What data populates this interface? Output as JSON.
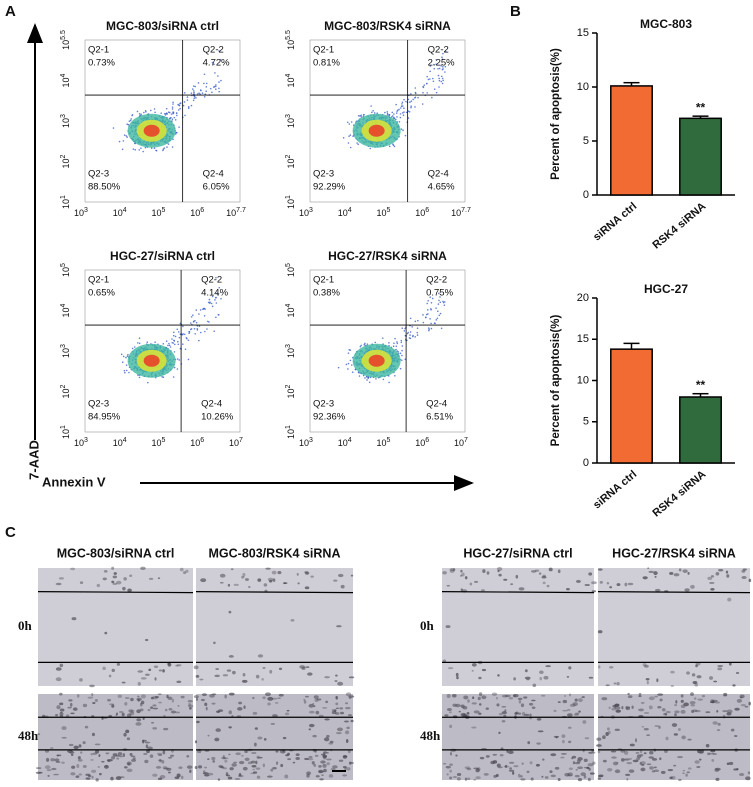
{
  "panel_labels": [
    "A",
    "B",
    "C"
  ],
  "flow": {
    "base": "10",
    "y_label": "7-AAD",
    "x_label": "Annexin V",
    "plots": [
      {
        "title": "MGC-803/siRNA ctrl",
        "quadrants": [
          {
            "name": "Q2-1",
            "pct": "0.73%"
          },
          {
            "name": "Q2-2",
            "pct": "4.72%"
          },
          {
            "name": "Q2-3",
            "pct": "88.50%"
          },
          {
            "name": "Q2-4",
            "pct": "6.05%"
          }
        ],
        "xticks": [
          "3",
          "4",
          "5",
          "6",
          "7.7"
        ],
        "yticks": [
          "1",
          "2",
          "3",
          "4",
          "5.5"
        ]
      },
      {
        "title": "MGC-803/RSK4 siRNA",
        "quadrants": [
          {
            "name": "Q2-1",
            "pct": "0.81%"
          },
          {
            "name": "Q2-2",
            "pct": "2.25%"
          },
          {
            "name": "Q2-3",
            "pct": "92.29%"
          },
          {
            "name": "Q2-4",
            "pct": "4.65%"
          }
        ],
        "xticks": [
          "3",
          "4",
          "5",
          "6",
          "7.7"
        ],
        "yticks": [
          "1",
          "2",
          "3",
          "4",
          "5.5"
        ]
      },
      {
        "title": "HGC-27/siRNA ctrl",
        "quadrants": [
          {
            "name": "Q2-1",
            "pct": "0.65%"
          },
          {
            "name": "Q2-2",
            "pct": "4.14%"
          },
          {
            "name": "Q2-3",
            "pct": "84.95%"
          },
          {
            "name": "Q2-4",
            "pct": "10.26%"
          }
        ],
        "xticks": [
          "3",
          "4",
          "5",
          "6",
          "7"
        ],
        "yticks": [
          "1",
          "2",
          "3",
          "4",
          "5"
        ]
      },
      {
        "title": "HGC-27/RSK4 siRNA",
        "quadrants": [
          {
            "name": "Q2-1",
            "pct": "0.38%"
          },
          {
            "name": "Q2-2",
            "pct": "0.75%"
          },
          {
            "name": "Q2-3",
            "pct": "92.36%"
          },
          {
            "name": "Q2-4",
            "pct": "6.51%"
          }
        ],
        "xticks": [
          "3",
          "4",
          "5",
          "6",
          "7"
        ],
        "yticks": [
          "1",
          "2",
          "3",
          "4",
          "5"
        ]
      }
    ]
  },
  "chart_data": [
    {
      "type": "bar",
      "title": "MGC-803",
      "y_label": "Percent of apoptosis(%)",
      "categories": [
        "siRNA ctrl",
        "RSK4 siRNA"
      ],
      "values": [
        10.1,
        7.1
      ],
      "errors": [
        0.3,
        0.2
      ],
      "colors": [
        "#f26b33",
        "#2f6b3c"
      ],
      "significance": [
        null,
        "**"
      ],
      "ylim": [
        0,
        15
      ],
      "yticks": [
        0,
        5,
        10,
        15
      ]
    },
    {
      "type": "bar",
      "title": "HGC-27",
      "y_label": "Percent of apoptosis(%)",
      "categories": [
        "siRNA ctrl",
        "RSK4 siRNA"
      ],
      "values": [
        13.8,
        8.0
      ],
      "errors": [
        0.7,
        0.4
      ],
      "colors": [
        "#f26b33",
        "#2f6b3c"
      ],
      "significance": [
        null,
        "**"
      ],
      "ylim": [
        0,
        20
      ],
      "yticks": [
        0,
        5,
        10,
        15,
        20
      ]
    }
  ],
  "wound": {
    "groups": [
      {
        "columns": [
          "MGC-803/siRNA ctrl",
          "MGC-803/RSK4 siRNA"
        ],
        "rows": [
          "0h",
          "48h"
        ]
      },
      {
        "columns": [
          "HGC-27/siRNA ctrl",
          "HGC-27/RSK4 siRNA"
        ],
        "rows": [
          "0h",
          "48h"
        ]
      }
    ]
  }
}
